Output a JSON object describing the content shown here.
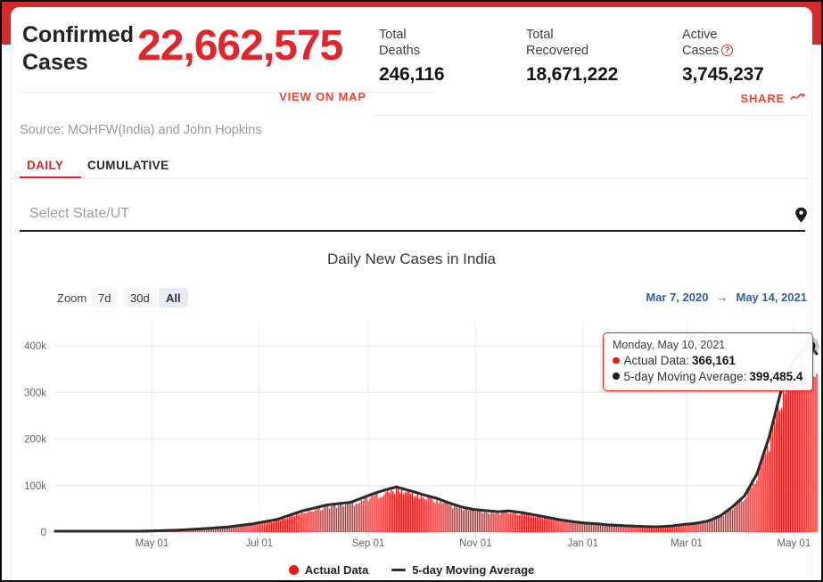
{
  "page": {
    "banner_color": "#d32a2a",
    "accent_red": "#e1252c"
  },
  "header": {
    "title_line1": "Confirmed",
    "title_line2": "Cases",
    "confirmed_value": "22,662,575",
    "view_on_map_label": "VIEW ON MAP",
    "share_label": "SHARE",
    "source_text": "Source: MOHFW(India) and John Hopkins",
    "stats": [
      {
        "label_line1": "Total",
        "label_line2": "Deaths",
        "value": "246,116"
      },
      {
        "label_line1": "Total",
        "label_line2": "Recovered",
        "value": "18,671,222"
      },
      {
        "label_line1": "Active",
        "label_line2": "Cases",
        "value": "3,745,237",
        "help_glyph": "?"
      }
    ]
  },
  "tabs": [
    {
      "label": "DAILY",
      "active": true
    },
    {
      "label": "CUMULATIVE",
      "active": false
    }
  ],
  "state_selector": {
    "placeholder": "Select State/UT"
  },
  "chart": {
    "title": "Daily New Cases in India",
    "zoom_label": "Zoom",
    "zoom_buttons": [
      {
        "label": "7d",
        "selected": false
      },
      {
        "label": "30d",
        "selected": false
      },
      {
        "label": "All",
        "selected": true
      }
    ],
    "range_from": "Mar 7, 2020",
    "range_separator": "→",
    "range_to": "May 14, 2021",
    "tooltip": {
      "title": "Monday, May 10, 2021",
      "rows": [
        {
          "label": "Actual Data:",
          "value": "366,161",
          "marker_color": "#f21515"
        },
        {
          "label": "5-day Moving Average:",
          "value": "399,485.4",
          "marker_color": "#1d1d1f"
        }
      ]
    }
  },
  "chart_data": {
    "type": "bar",
    "title": "Daily New Cases in India",
    "xlabel": "",
    "ylabel": "",
    "start_date": "2020-03-07",
    "end_date": "2021-05-14",
    "ylim": [
      0,
      420000
    ],
    "grid": true,
    "legend_position": "bottom",
    "y_ticks": [
      [
        0,
        "0"
      ],
      [
        100000,
        "100k"
      ],
      [
        200000,
        "200k"
      ],
      [
        300000,
        "300k"
      ],
      [
        400000,
        "400k"
      ]
    ],
    "x_ticks": [
      [
        "2020-05-01",
        "May 01"
      ],
      [
        "2020-07-01",
        "Jul 01"
      ],
      [
        "2020-09-01",
        "Sep 01"
      ],
      [
        "2020-11-01",
        "Nov 01"
      ],
      [
        "2021-01-01",
        "Jan 01"
      ],
      [
        "2021-03-01",
        "Mar 01"
      ],
      [
        "2021-05-01",
        "May 01"
      ]
    ],
    "series": [
      {
        "name": "Actual Data",
        "type": "bar",
        "color": "#f21515"
      },
      {
        "name": "5-day Moving Average",
        "type": "line",
        "color": "#2b2b2d"
      }
    ],
    "moving_average_anchors": [
      [
        "2020-03-07",
        80
      ],
      [
        "2020-03-21",
        180
      ],
      [
        "2020-04-04",
        800
      ],
      [
        "2020-04-18",
        1500
      ],
      [
        "2020-05-02",
        2600
      ],
      [
        "2020-05-16",
        4200
      ],
      [
        "2020-05-30",
        7200
      ],
      [
        "2020-06-13",
        11000
      ],
      [
        "2020-06-27",
        17500
      ],
      [
        "2020-07-11",
        27000
      ],
      [
        "2020-07-25",
        45000
      ],
      [
        "2020-08-08",
        58000
      ],
      [
        "2020-08-22",
        64000
      ],
      [
        "2020-09-05",
        84000
      ],
      [
        "2020-09-11",
        91000
      ],
      [
        "2020-09-17",
        96800
      ],
      [
        "2020-09-26",
        87500
      ],
      [
        "2020-10-03",
        79500
      ],
      [
        "2020-10-10",
        72500
      ],
      [
        "2020-10-17",
        62500
      ],
      [
        "2020-10-24",
        54000
      ],
      [
        "2020-10-31",
        48500
      ],
      [
        "2020-11-07",
        46000
      ],
      [
        "2020-11-14",
        43800
      ],
      [
        "2020-11-20",
        45500
      ],
      [
        "2020-11-28",
        41500
      ],
      [
        "2020-12-05",
        36500
      ],
      [
        "2020-12-12",
        31500
      ],
      [
        "2020-12-19",
        26500
      ],
      [
        "2020-12-26",
        22500
      ],
      [
        "2021-01-02",
        19500
      ],
      [
        "2021-01-09",
        17800
      ],
      [
        "2021-01-16",
        15200
      ],
      [
        "2021-01-23",
        14000
      ],
      [
        "2021-01-30",
        12800
      ],
      [
        "2021-02-06",
        11800
      ],
      [
        "2021-02-13",
        11400
      ],
      [
        "2021-02-20",
        13000
      ],
      [
        "2021-02-27",
        16200
      ],
      [
        "2021-03-06",
        18800
      ],
      [
        "2021-03-13",
        23500
      ],
      [
        "2021-03-20",
        34500
      ],
      [
        "2021-03-27",
        54000
      ],
      [
        "2021-04-03",
        78000
      ],
      [
        "2021-04-10",
        125000
      ],
      [
        "2021-04-17",
        205000
      ],
      [
        "2021-04-24",
        308000
      ],
      [
        "2021-05-01",
        370000
      ],
      [
        "2021-05-06",
        388000
      ],
      [
        "2021-05-10",
        399485.4
      ],
      [
        "2021-05-14",
        383000
      ]
    ],
    "highlight_point": {
      "date": "2021-05-10",
      "actual": 366161,
      "moving_average": 399485.4
    }
  }
}
